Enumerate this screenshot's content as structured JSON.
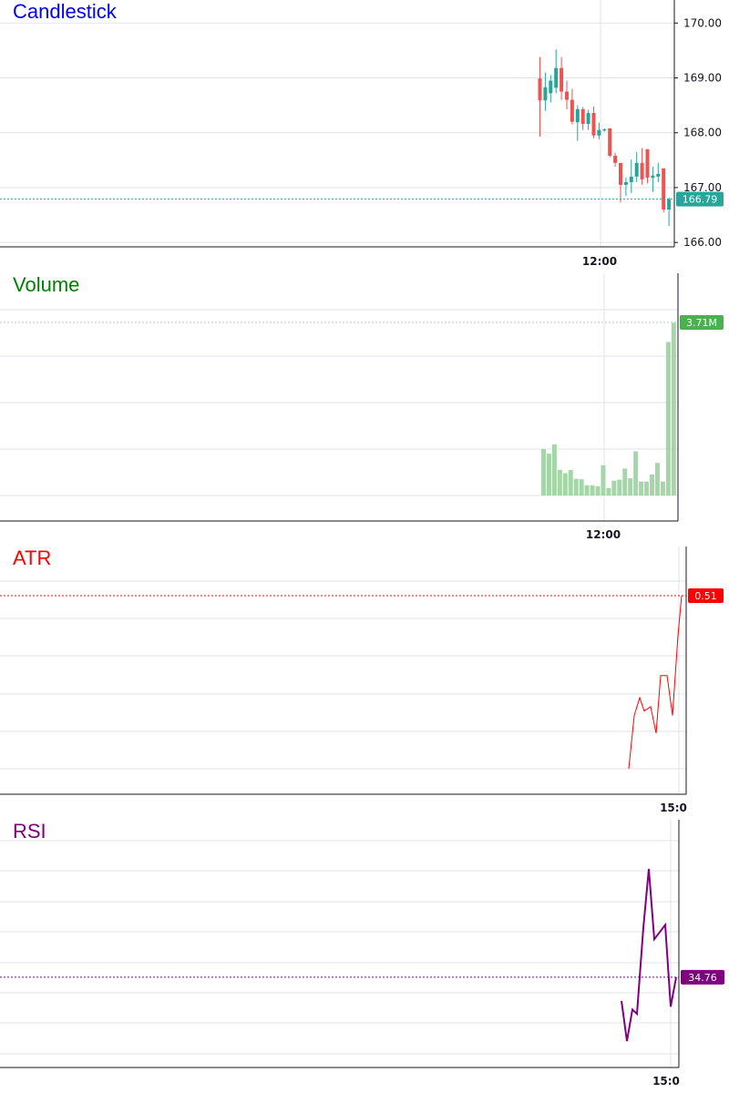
{
  "colors": {
    "up": "#26a69a",
    "down": "#ef5350",
    "volume_bar": "#a5d6a7",
    "volume_badge": "#4caf50",
    "atr": "#ff0000",
    "rsi": "#800080",
    "grid": "#e0e3eb",
    "axis": "#131722",
    "title_candle": "#0000ff",
    "title_volume": "#008000",
    "title_atr": "#ff0000",
    "title_rsi": "#800080"
  },
  "chart_data": [
    {
      "type": "candlestick",
      "title": "Candlestick",
      "y_ticks": [
        "170.00",
        "169.00",
        "168.00",
        "167.00",
        "166.00"
      ],
      "y_tick_values": [
        170,
        169,
        168,
        167,
        166
      ],
      "ylim": [
        165.92,
        170.42
      ],
      "time_label": "12:00",
      "last_value": 166.79,
      "last_value_label": "166.79",
      "candles": [
        {
          "o": 168.99,
          "h": 169.38,
          "l": 167.93,
          "c": 168.59
        },
        {
          "o": 168.59,
          "h": 169.1,
          "l": 168.4,
          "c": 168.83
        },
        {
          "o": 168.72,
          "h": 169.05,
          "l": 168.55,
          "c": 168.95
        },
        {
          "o": 168.82,
          "h": 169.52,
          "l": 168.72,
          "c": 169.18
        },
        {
          "o": 169.18,
          "h": 169.38,
          "l": 168.6,
          "c": 168.75
        },
        {
          "o": 168.75,
          "h": 168.95,
          "l": 168.43,
          "c": 168.6
        },
        {
          "o": 168.6,
          "h": 168.8,
          "l": 168.15,
          "c": 168.2
        },
        {
          "o": 168.19,
          "h": 168.5,
          "l": 167.85,
          "c": 168.43
        },
        {
          "o": 168.43,
          "h": 168.47,
          "l": 168.05,
          "c": 168.16
        },
        {
          "o": 168.16,
          "h": 168.42,
          "l": 168.05,
          "c": 168.36
        },
        {
          "o": 168.36,
          "h": 168.48,
          "l": 167.9,
          "c": 167.95
        },
        {
          "o": 167.95,
          "h": 168.18,
          "l": 167.88,
          "c": 168.05
        },
        {
          "o": 168.04,
          "h": 168.08,
          "l": 168.02,
          "c": 168.06
        },
        {
          "o": 168.08,
          "h": 168.08,
          "l": 167.55,
          "c": 167.58
        },
        {
          "o": 167.58,
          "h": 167.64,
          "l": 167.38,
          "c": 167.45
        },
        {
          "o": 167.45,
          "h": 167.45,
          "l": 166.73,
          "c": 167.05
        },
        {
          "o": 167.05,
          "h": 167.18,
          "l": 166.85,
          "c": 167.1
        },
        {
          "o": 167.1,
          "h": 167.51,
          "l": 166.9,
          "c": 167.2
        },
        {
          "o": 167.2,
          "h": 167.65,
          "l": 167.1,
          "c": 167.45
        },
        {
          "o": 167.45,
          "h": 167.72,
          "l": 167.05,
          "c": 167.15
        },
        {
          "o": 167.7,
          "h": 167.7,
          "l": 167.08,
          "c": 167.18
        },
        {
          "o": 167.18,
          "h": 167.38,
          "l": 166.92,
          "c": 167.22
        },
        {
          "o": 167.2,
          "h": 167.45,
          "l": 167.1,
          "c": 167.25
        },
        {
          "o": 167.35,
          "h": 167.35,
          "l": 166.55,
          "c": 166.6
        },
        {
          "o": 166.6,
          "h": 166.82,
          "l": 166.3,
          "c": 166.79
        }
      ]
    },
    {
      "type": "bar",
      "title": "Volume",
      "time_label": "12:00",
      "last_value_label": "3.71M",
      "ylim": [
        0,
        3.75
      ],
      "values": [
        1.0,
        0.9,
        1.1,
        0.55,
        0.48,
        0.55,
        0.36,
        0.35,
        0.22,
        0.22,
        0.2,
        0.65,
        0.16,
        0.32,
        0.34,
        0.58,
        0.37,
        0.95,
        0.3,
        0.3,
        0.45,
        0.7,
        0.3,
        3.3,
        3.71
      ]
    },
    {
      "type": "line",
      "title": "ATR",
      "time_label": "15:0",
      "last_value": 0.51,
      "last_value_label": "0.51",
      "ylim": [
        0.1,
        0.56
      ],
      "values": [
        0.12,
        0.24,
        0.28,
        0.25,
        0.26,
        0.2,
        0.33,
        0.33,
        0.24,
        0.42,
        0.51
      ]
    },
    {
      "type": "line",
      "title": "RSI",
      "time_label": "15:0",
      "last_value": 34.76,
      "last_value_label": "34.76",
      "ylim": [
        10,
        80
      ],
      "values": [
        26.5,
        12.5,
        23.5,
        22.0,
        52.0,
        72.5,
        48.0,
        50.5,
        53.0,
        24.5,
        34.76
      ]
    }
  ]
}
